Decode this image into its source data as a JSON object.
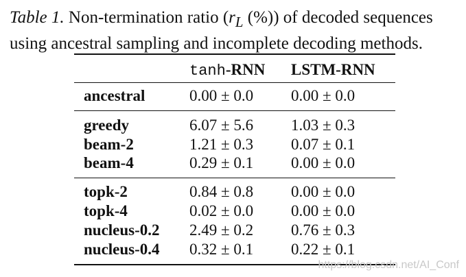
{
  "caption": {
    "label": "Table 1.",
    "text_before": " Non-termination ratio (",
    "symbol": "r",
    "subscript": "L",
    "text_after": " (%)) of decoded sequences using ancestral sampling and incomplete decoding methods."
  },
  "table": {
    "header": {
      "col1_prefix": "tanh",
      "col1_suffix": "-RNN",
      "col2": "LSTM-RNN"
    },
    "rows": [
      {
        "method": "ancestral",
        "tanh": "0.00 ± 0.0",
        "lstm": "0.00 ± 0.0"
      },
      {
        "method": "greedy",
        "tanh": "6.07 ± 5.6",
        "lstm": "1.03 ± 0.3"
      },
      {
        "method": "beam-2",
        "tanh": "1.21 ± 0.3",
        "lstm": "0.07 ± 0.1"
      },
      {
        "method": "beam-4",
        "tanh": "0.29 ± 0.1",
        "lstm": "0.00 ± 0.0"
      },
      {
        "method": "topk-2",
        "tanh": "0.84 ± 0.8",
        "lstm": "0.00 ± 0.0"
      },
      {
        "method": "topk-4",
        "tanh": "0.02 ± 0.0",
        "lstm": "0.00 ± 0.0"
      },
      {
        "method": "nucleus-0.2",
        "tanh": "2.49 ± 0.2",
        "lstm": "0.76 ± 0.3"
      },
      {
        "method": "nucleus-0.4",
        "tanh": "0.32 ± 0.1",
        "lstm": "0.22 ± 0.1"
      }
    ]
  },
  "watermark": "https://blog.csdn.net/AI_Conf"
}
